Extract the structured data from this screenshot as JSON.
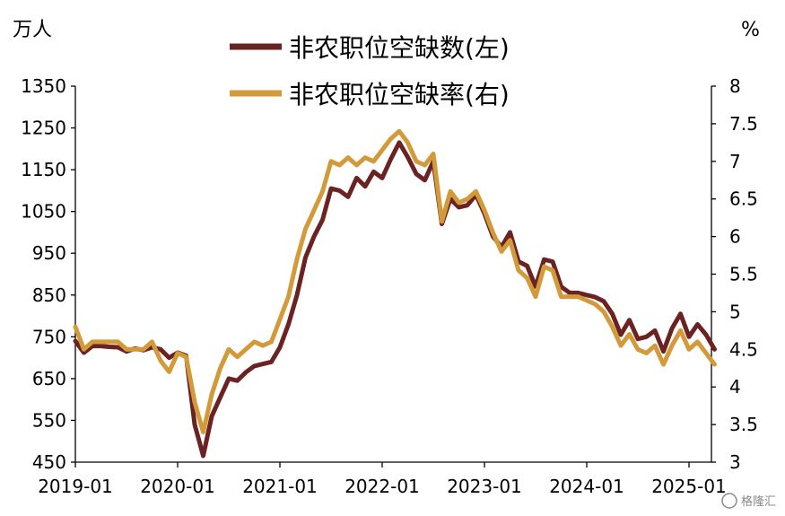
{
  "chart_data": {
    "type": "line",
    "left_unit": "万人",
    "right_unit": "%",
    "left_axis": {
      "min": 450,
      "max": 1350,
      "ticks": [
        450,
        550,
        650,
        750,
        850,
        950,
        1050,
        1150,
        1250,
        1350
      ]
    },
    "right_axis": {
      "min": 3,
      "max": 8,
      "ticks": [
        "3",
        "3.5",
        "4",
        "4.5",
        "5",
        "5.5",
        "6",
        "6.5",
        "7",
        "7.5",
        "8"
      ]
    },
    "x_tick_labels": [
      "2019-01",
      "2020-01",
      "2021-01",
      "2022-01",
      "2023-01",
      "2024-01",
      "2025-01"
    ],
    "x_ticks": [
      "2019-01",
      "2020-01",
      "2021-01",
      "2022-01",
      "2023-01",
      "2024-01",
      "2025-01"
    ],
    "legend_position": "top-center",
    "series": [
      {
        "name": "非农职位空缺数(左)",
        "axis": "left",
        "color": "#6b2222",
        "points": [
          [
            "2019-01",
            740
          ],
          [
            "2019-02",
            712
          ],
          [
            "2019-03",
            728
          ],
          [
            "2019-04",
            728
          ],
          [
            "2019-05",
            726
          ],
          [
            "2019-06",
            725
          ],
          [
            "2019-07",
            715
          ],
          [
            "2019-08",
            722
          ],
          [
            "2019-09",
            718
          ],
          [
            "2019-10",
            725
          ],
          [
            "2019-11",
            720
          ],
          [
            "2019-12",
            700
          ],
          [
            "2020-01",
            712
          ],
          [
            "2020-02",
            705
          ],
          [
            "2020-03",
            540
          ],
          [
            "2020-04",
            465
          ],
          [
            "2020-05",
            560
          ],
          [
            "2020-06",
            605
          ],
          [
            "2020-07",
            650
          ],
          [
            "2020-08",
            645
          ],
          [
            "2020-09",
            665
          ],
          [
            "2020-10",
            680
          ],
          [
            "2020-11",
            685
          ],
          [
            "2020-12",
            690
          ],
          [
            "2021-01",
            725
          ],
          [
            "2021-02",
            780
          ],
          [
            "2021-03",
            850
          ],
          [
            "2021-04",
            940
          ],
          [
            "2021-05",
            990
          ],
          [
            "2021-06",
            1030
          ],
          [
            "2021-07",
            1105
          ],
          [
            "2021-08",
            1100
          ],
          [
            "2021-09",
            1085
          ],
          [
            "2021-10",
            1130
          ],
          [
            "2021-11",
            1110
          ],
          [
            "2021-12",
            1145
          ],
          [
            "2022-01",
            1130
          ],
          [
            "2022-02",
            1175
          ],
          [
            "2022-03",
            1215
          ],
          [
            "2022-04",
            1180
          ],
          [
            "2022-05",
            1140
          ],
          [
            "2022-06",
            1125
          ],
          [
            "2022-07",
            1170
          ],
          [
            "2022-08",
            1020
          ],
          [
            "2022-09",
            1080
          ],
          [
            "2022-10",
            1060
          ],
          [
            "2022-11",
            1065
          ],
          [
            "2022-12",
            1090
          ],
          [
            "2023-01",
            1045
          ],
          [
            "2023-02",
            990
          ],
          [
            "2023-03",
            965
          ],
          [
            "2023-04",
            1000
          ],
          [
            "2023-05",
            930
          ],
          [
            "2023-06",
            920
          ],
          [
            "2023-07",
            870
          ],
          [
            "2023-08",
            935
          ],
          [
            "2023-09",
            930
          ],
          [
            "2023-10",
            870
          ],
          [
            "2023-11",
            855
          ],
          [
            "2023-12",
            855
          ],
          [
            "2024-01",
            850
          ],
          [
            "2024-02",
            845
          ],
          [
            "2024-03",
            835
          ],
          [
            "2024-04",
            805
          ],
          [
            "2024-05",
            755
          ],
          [
            "2024-06",
            790
          ],
          [
            "2024-07",
            745
          ],
          [
            "2024-08",
            750
          ],
          [
            "2024-09",
            765
          ],
          [
            "2024-10",
            715
          ],
          [
            "2024-11",
            770
          ],
          [
            "2024-12",
            805
          ],
          [
            "2025-01",
            750
          ],
          [
            "2025-02",
            780
          ],
          [
            "2025-03",
            755
          ],
          [
            "2025-04",
            720
          ]
        ]
      },
      {
        "name": "非农职位空缺率(右)",
        "axis": "right",
        "color": "#d39a3a",
        "points": [
          [
            "2019-01",
            4.8
          ],
          [
            "2019-02",
            4.5
          ],
          [
            "2019-03",
            4.6
          ],
          [
            "2019-04",
            4.6
          ],
          [
            "2019-05",
            4.6
          ],
          [
            "2019-06",
            4.6
          ],
          [
            "2019-07",
            4.5
          ],
          [
            "2019-08",
            4.5
          ],
          [
            "2019-09",
            4.5
          ],
          [
            "2019-10",
            4.6
          ],
          [
            "2019-11",
            4.35
          ],
          [
            "2019-12",
            4.2
          ],
          [
            "2020-01",
            4.45
          ],
          [
            "2020-02",
            4.4
          ],
          [
            "2020-03",
            3.8
          ],
          [
            "2020-04",
            3.4
          ],
          [
            "2020-05",
            3.9
          ],
          [
            "2020-06",
            4.25
          ],
          [
            "2020-07",
            4.5
          ],
          [
            "2020-08",
            4.4
          ],
          [
            "2020-09",
            4.5
          ],
          [
            "2020-10",
            4.6
          ],
          [
            "2020-11",
            4.55
          ],
          [
            "2020-12",
            4.6
          ],
          [
            "2021-01",
            4.9
          ],
          [
            "2021-02",
            5.2
          ],
          [
            "2021-03",
            5.7
          ],
          [
            "2021-04",
            6.1
          ],
          [
            "2021-05",
            6.35
          ],
          [
            "2021-06",
            6.6
          ],
          [
            "2021-07",
            7.0
          ],
          [
            "2021-08",
            6.95
          ],
          [
            "2021-09",
            7.05
          ],
          [
            "2021-10",
            6.95
          ],
          [
            "2021-11",
            7.05
          ],
          [
            "2021-12",
            7.0
          ],
          [
            "2022-01",
            7.15
          ],
          [
            "2022-02",
            7.3
          ],
          [
            "2022-03",
            7.4
          ],
          [
            "2022-04",
            7.25
          ],
          [
            "2022-05",
            7.0
          ],
          [
            "2022-06",
            6.95
          ],
          [
            "2022-07",
            7.1
          ],
          [
            "2022-08",
            6.2
          ],
          [
            "2022-09",
            6.6
          ],
          [
            "2022-10",
            6.45
          ],
          [
            "2022-11",
            6.5
          ],
          [
            "2022-12",
            6.6
          ],
          [
            "2023-01",
            6.35
          ],
          [
            "2023-02",
            6.05
          ],
          [
            "2023-03",
            5.8
          ],
          [
            "2023-04",
            5.95
          ],
          [
            "2023-05",
            5.55
          ],
          [
            "2023-06",
            5.45
          ],
          [
            "2023-07",
            5.2
          ],
          [
            "2023-08",
            5.6
          ],
          [
            "2023-09",
            5.55
          ],
          [
            "2023-10",
            5.2
          ],
          [
            "2023-11",
            5.2
          ],
          [
            "2023-12",
            5.2
          ],
          [
            "2024-01",
            5.15
          ],
          [
            "2024-02",
            5.1
          ],
          [
            "2024-03",
            5.0
          ],
          [
            "2024-04",
            4.8
          ],
          [
            "2024-05",
            4.55
          ],
          [
            "2024-06",
            4.7
          ],
          [
            "2024-07",
            4.5
          ],
          [
            "2024-08",
            4.45
          ],
          [
            "2024-09",
            4.55
          ],
          [
            "2024-10",
            4.3
          ],
          [
            "2024-11",
            4.55
          ],
          [
            "2024-12",
            4.75
          ],
          [
            "2025-01",
            4.5
          ],
          [
            "2025-02",
            4.6
          ],
          [
            "2025-03",
            4.45
          ],
          [
            "2025-04",
            4.3
          ]
        ]
      }
    ]
  },
  "watermark": "格隆汇"
}
